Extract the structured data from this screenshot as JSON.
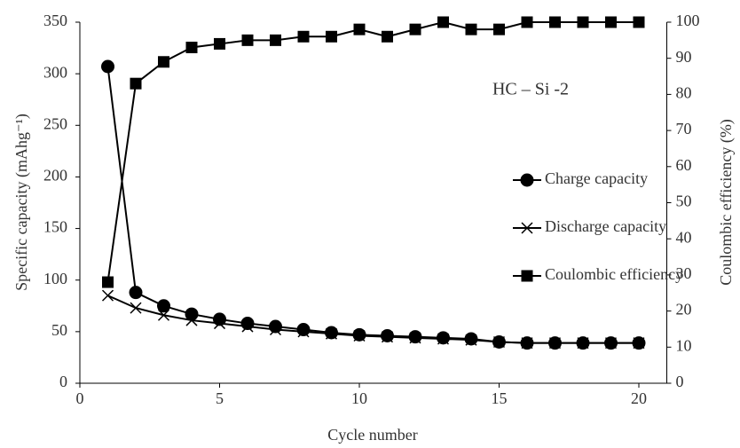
{
  "chart_data": {
    "type": "line",
    "annotation": "HC – Si -2",
    "x_label": "Cycle number",
    "y_label": "Specific capacity (mAhg⁻¹)",
    "y2_label": "Coulombic efficiency (%)",
    "x": [
      1,
      2,
      3,
      4,
      5,
      6,
      7,
      8,
      9,
      10,
      11,
      12,
      13,
      14,
      15,
      16,
      17,
      18,
      19,
      20
    ],
    "xlim": [
      0,
      21
    ],
    "xticks": [
      0,
      5,
      10,
      15,
      20
    ],
    "ylim": [
      0,
      350
    ],
    "yticks": [
      0,
      50,
      100,
      150,
      200,
      250,
      300,
      350
    ],
    "y2lim": [
      0,
      100
    ],
    "y2ticks": [
      0,
      10,
      20,
      30,
      40,
      50,
      60,
      70,
      80,
      90,
      100
    ],
    "grid": false,
    "legend": "right",
    "series": [
      {
        "name": "Charge capacity",
        "color": "#000000",
        "marker": "circle",
        "values": [
          307,
          88,
          75,
          67,
          62,
          58,
          55,
          52,
          49,
          47,
          46,
          45,
          44,
          43,
          40,
          39,
          39,
          39,
          39,
          39
        ]
      },
      {
        "name": "Discharge capacity",
        "color": "#000000",
        "marker": "x",
        "values": [
          85,
          73,
          66,
          61,
          58,
          55,
          52,
          50,
          48,
          46,
          45,
          44,
          43,
          42,
          40,
          39,
          39,
          39,
          39,
          39
        ]
      },
      {
        "name": "Coulombic efficiency",
        "color": "#000000",
        "marker": "square",
        "axis": "y2",
        "values": [
          28,
          83,
          89,
          93,
          94,
          95,
          95,
          96,
          96,
          98,
          96,
          98,
          100,
          98,
          98,
          100,
          100,
          100,
          100,
          100
        ]
      }
    ]
  }
}
